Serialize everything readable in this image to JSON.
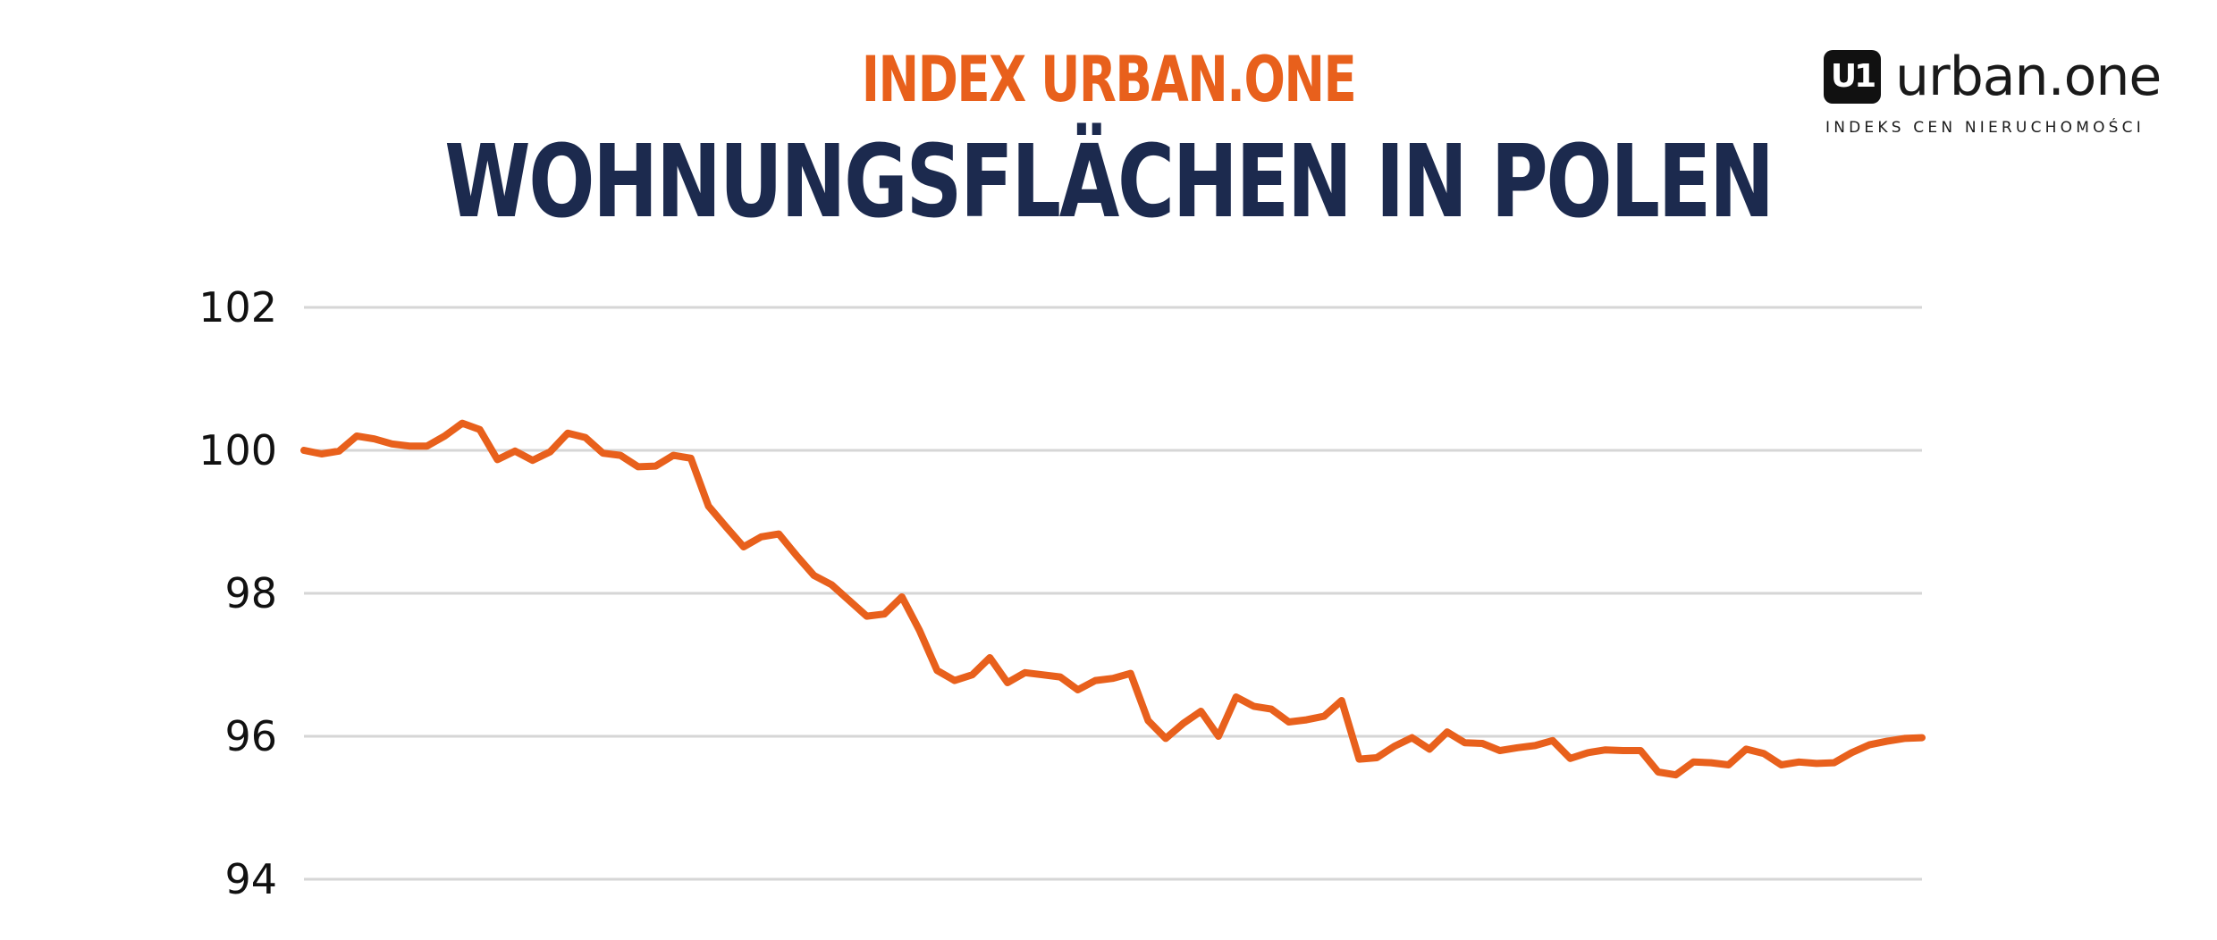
{
  "colors": {
    "accent": "#E8601C",
    "navy": "#1C2A4E",
    "grid": "#D6D6D6",
    "logo_dark": "#111111"
  },
  "header": {
    "supertitle": "INDEX URBAN.ONE",
    "title": "WOHNUNGSFLÄCHEN IN POLEN"
  },
  "logo": {
    "mark": "U1",
    "wordmark": "urban.one",
    "tagline": "INDEKS CEN NIERUCHOMOŚCI"
  },
  "chart_data": {
    "type": "line",
    "title": "WOHNUNGSFLÄCHEN IN POLEN",
    "xlabel": "",
    "ylabel": "",
    "ylim": [
      94,
      102
    ],
    "yticks": [
      102,
      100,
      98,
      96,
      94
    ],
    "grid": true,
    "legend": "none",
    "series": [
      {
        "values": [
          100.0,
          99.95,
          99.99,
          100.2,
          100.16,
          100.09,
          100.06,
          100.06,
          100.2,
          100.38,
          100.29,
          99.87,
          99.99,
          99.86,
          99.98,
          100.24,
          100.18,
          99.96,
          99.93,
          99.77,
          99.78,
          99.93,
          99.89,
          99.22,
          98.93,
          98.65,
          98.79,
          98.83,
          98.53,
          98.25,
          98.12,
          97.9,
          97.68,
          97.71,
          97.95,
          97.48,
          96.92,
          96.78,
          96.86,
          97.1,
          96.75,
          96.89,
          96.86,
          96.83,
          96.65,
          96.78,
          96.81,
          96.88,
          96.22,
          95.97,
          96.18,
          96.35,
          96.0,
          96.55,
          96.42,
          96.38,
          96.2,
          96.23,
          96.28,
          96.5,
          95.68,
          95.7,
          95.86,
          95.98,
          95.82,
          96.06,
          95.91,
          95.9,
          95.8,
          95.84,
          95.87,
          95.94,
          95.69,
          95.77,
          95.81,
          95.8,
          95.8,
          95.5,
          95.46,
          95.64,
          95.63,
          95.6,
          95.82,
          95.76,
          95.6,
          95.64,
          95.62,
          95.63,
          95.77,
          95.88,
          95.93,
          95.97,
          95.98
        ]
      }
    ]
  }
}
